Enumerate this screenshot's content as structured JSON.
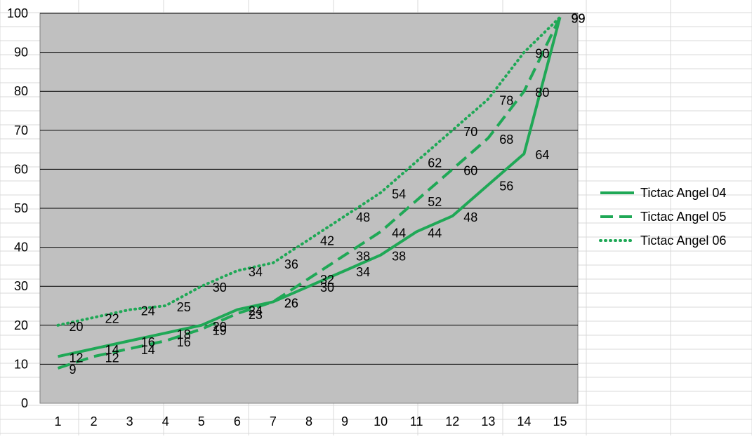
{
  "chart_data": {
    "type": "line",
    "title": "",
    "xlabel": "",
    "ylabel": "",
    "x": [
      1,
      2,
      3,
      4,
      5,
      6,
      7,
      8,
      9,
      10,
      11,
      12,
      13,
      14,
      15
    ],
    "ylim": [
      0,
      100
    ],
    "yticks": [
      0,
      10,
      20,
      30,
      40,
      50,
      60,
      70,
      80,
      90,
      100
    ],
    "grid": "horizontal",
    "legend": "right",
    "plot_background": "#c0c0c0",
    "series": [
      {
        "name": "Tictac Angel 04",
        "style": "solid",
        "color": "#1fa856",
        "values": [
          12,
          14,
          16,
          18,
          20,
          24,
          26,
          30,
          34,
          38,
          44,
          48,
          56,
          64,
          99
        ],
        "labels": [
          12,
          14,
          16,
          18,
          20,
          24,
          26,
          30,
          34,
          38,
          44,
          48,
          56,
          64,
          99
        ]
      },
      {
        "name": "Tictac Angel 05",
        "style": "dashed",
        "color": "#1fa856",
        "values": [
          9,
          12,
          14,
          16,
          19,
          23,
          26,
          32,
          38,
          44,
          52,
          60,
          68,
          80,
          99
        ],
        "labels": [
          9,
          12,
          14,
          16,
          19,
          23,
          26,
          32,
          38,
          44,
          52,
          60,
          68,
          80,
          99
        ]
      },
      {
        "name": "Tictac Angel 06",
        "style": "dotted",
        "color": "#1fa856",
        "values": [
          20,
          22,
          24,
          25,
          30,
          34,
          36,
          42,
          48,
          54,
          62,
          70,
          78,
          90,
          99
        ],
        "labels": [
          20,
          22,
          24,
          25,
          30,
          34,
          36,
          42,
          48,
          54,
          62,
          70,
          78,
          90,
          99
        ]
      }
    ]
  },
  "colors": {
    "gridline": "#000000",
    "sheet_gridline": "#d9d9d9",
    "series": "#1fa856"
  }
}
